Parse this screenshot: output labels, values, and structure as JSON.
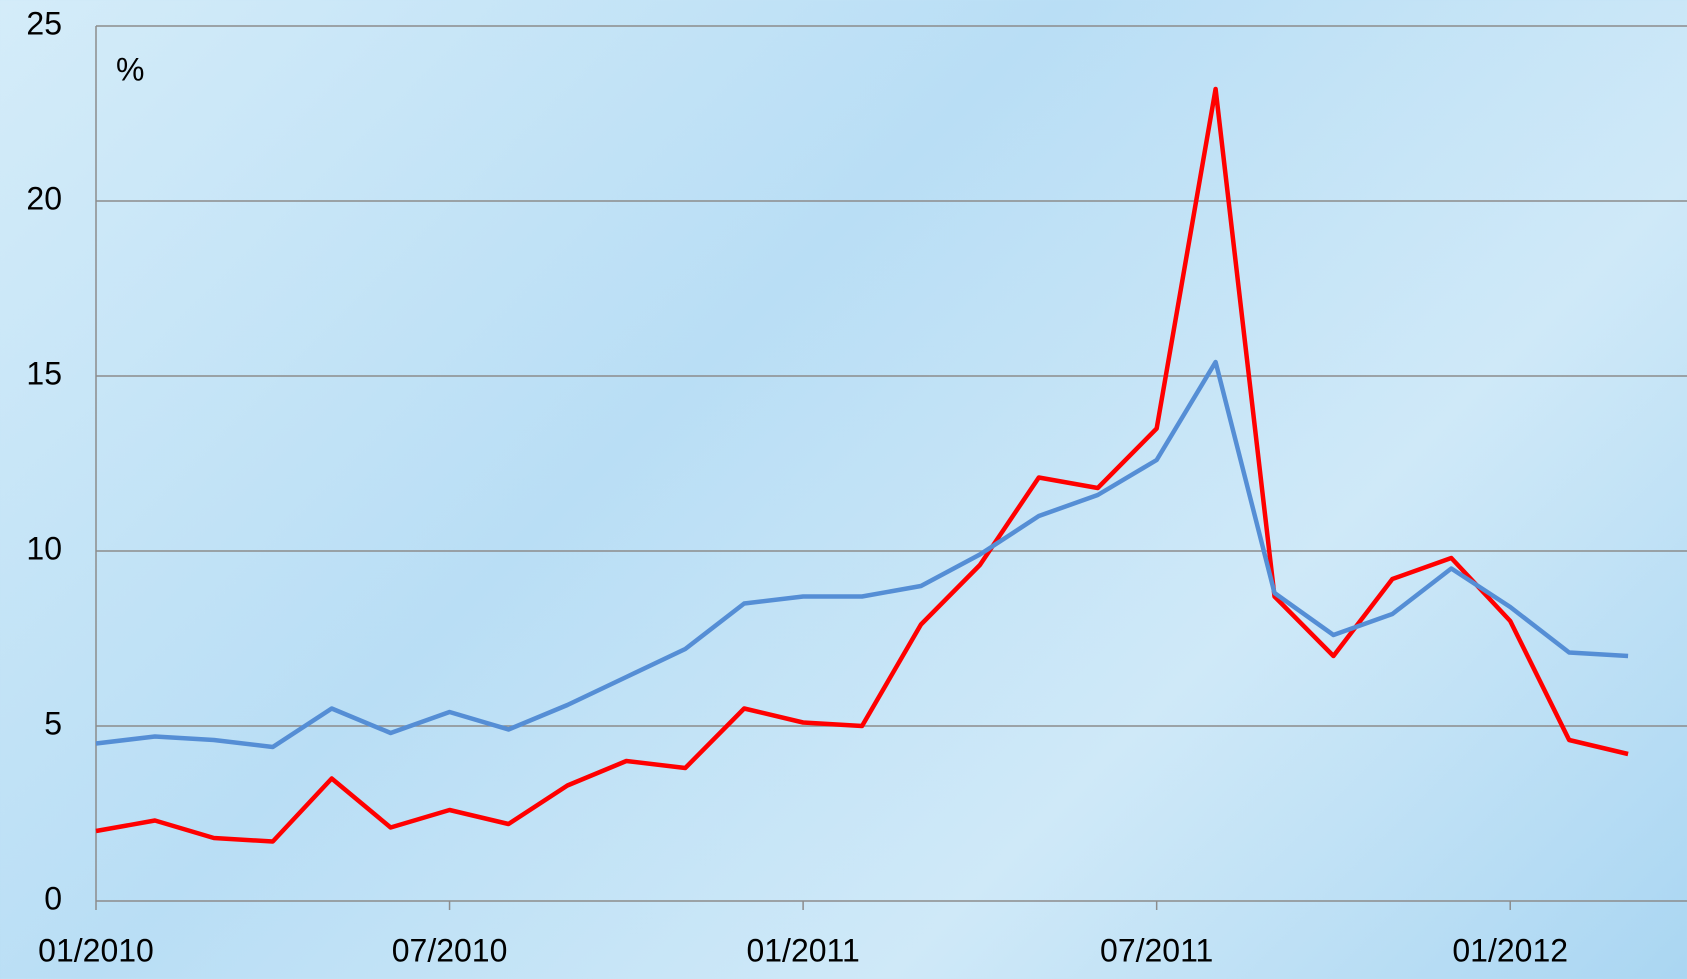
{
  "chart_data": {
    "type": "line",
    "annotation": "%",
    "x": [
      "01/2010",
      "02/2010",
      "03/2010",
      "04/2010",
      "05/2010",
      "06/2010",
      "07/2010",
      "08/2010",
      "09/2010",
      "10/2010",
      "11/2010",
      "12/2010",
      "01/2011",
      "02/2011",
      "03/2011",
      "04/2011",
      "05/2011",
      "06/2011",
      "07/2011",
      "08/2011",
      "09/2011",
      "10/2011",
      "11/2011",
      "12/2011",
      "01/2012",
      "02/2012",
      "03/2012"
    ],
    "series": [
      {
        "color": "#ff0000",
        "values": [
          2.0,
          2.3,
          1.8,
          1.7,
          3.5,
          2.1,
          2.6,
          2.2,
          3.3,
          4.0,
          3.8,
          5.5,
          5.1,
          5.0,
          7.9,
          9.6,
          12.1,
          11.8,
          13.5,
          23.2,
          8.7,
          7.0,
          9.2,
          9.8,
          8.0,
          4.6,
          4.2
        ]
      },
      {
        "color": "#558ed5",
        "values": [
          4.5,
          4.7,
          4.6,
          4.4,
          5.5,
          4.8,
          5.4,
          4.9,
          5.6,
          6.4,
          7.2,
          8.5,
          8.7,
          8.7,
          9.0,
          9.9,
          11.0,
          11.6,
          12.6,
          15.4,
          8.8,
          7.6,
          8.2,
          9.5,
          8.4,
          7.1,
          7.0
        ]
      }
    ],
    "xlim": [
      "01/2010",
      "04/2012"
    ],
    "xticks": [
      "01/2010",
      "07/2010",
      "01/2011",
      "07/2011",
      "01/2012"
    ],
    "ylim": [
      0,
      25
    ],
    "yticks": [
      0,
      5,
      10,
      15,
      20,
      25
    ],
    "grid": true
  }
}
